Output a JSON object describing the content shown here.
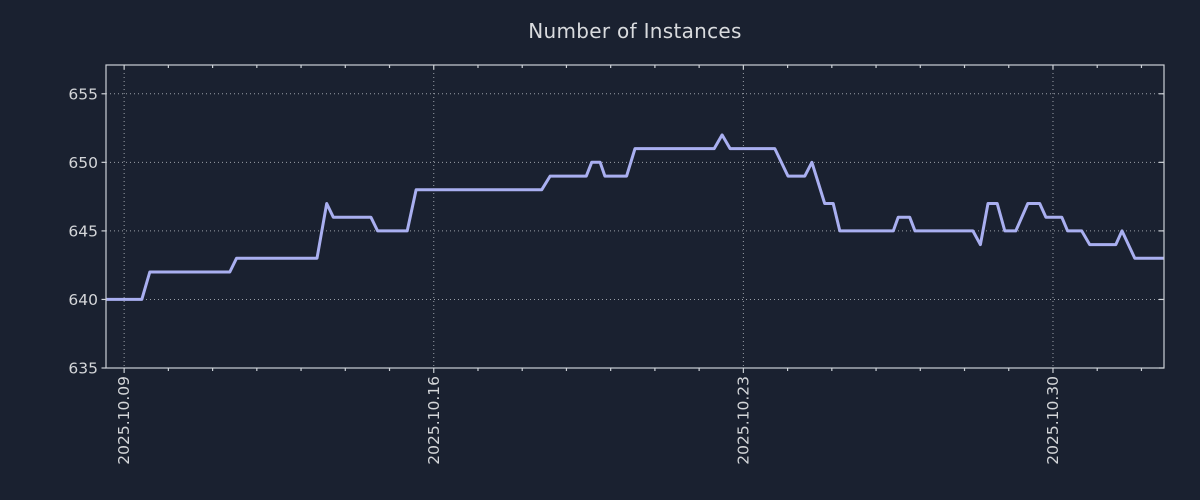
{
  "chart_data": {
    "type": "line",
    "title": "Number of Instances",
    "xlabel": "",
    "ylabel": "",
    "legend": "none",
    "grid": "dotted, both axes, at major ticks",
    "x_unit": "days relative to 2025.10.09",
    "xlim": [
      -0.41,
      23.51
    ],
    "ylim": [
      635,
      657.1
    ],
    "y_ticks": [
      635,
      640,
      645,
      650,
      655
    ],
    "x_ticks": [
      {
        "day": 0,
        "label": "2025.10.09"
      },
      {
        "day": 7,
        "label": "2025.10.16"
      },
      {
        "day": 14,
        "label": "2025.10.23"
      },
      {
        "day": 21,
        "label": "2025.10.30"
      }
    ],
    "x_minor_tick_every_days": 1,
    "series": [
      {
        "name": "Number of Instances",
        "color": "#a9aff0",
        "points": [
          [
            -0.41,
            640
          ],
          [
            0.4,
            640
          ],
          [
            0.58,
            642
          ],
          [
            2.39,
            642
          ],
          [
            2.54,
            643
          ],
          [
            4.36,
            643
          ],
          [
            4.58,
            647
          ],
          [
            4.73,
            646
          ],
          [
            5.58,
            646
          ],
          [
            5.73,
            645
          ],
          [
            6.4,
            645
          ],
          [
            6.6,
            648
          ],
          [
            9.44,
            648
          ],
          [
            9.63,
            649
          ],
          [
            10.45,
            649
          ],
          [
            10.57,
            650
          ],
          [
            10.76,
            650
          ],
          [
            10.87,
            649
          ],
          [
            11.36,
            649
          ],
          [
            11.55,
            651
          ],
          [
            13.34,
            651
          ],
          [
            13.52,
            652
          ],
          [
            13.7,
            651
          ],
          [
            14.71,
            651
          ],
          [
            15.01,
            649
          ],
          [
            15.39,
            649
          ],
          [
            15.55,
            650
          ],
          [
            15.84,
            647
          ],
          [
            16.03,
            647
          ],
          [
            16.18,
            645
          ],
          [
            17.39,
            645
          ],
          [
            17.5,
            646
          ],
          [
            17.76,
            646
          ],
          [
            17.88,
            645
          ],
          [
            19.19,
            645
          ],
          [
            19.36,
            644
          ],
          [
            19.53,
            647
          ],
          [
            19.74,
            647
          ],
          [
            19.91,
            645
          ],
          [
            20.16,
            645
          ],
          [
            20.43,
            647
          ],
          [
            20.7,
            647
          ],
          [
            20.84,
            646
          ],
          [
            21.2,
            646
          ],
          [
            21.33,
            645
          ],
          [
            21.65,
            645
          ],
          [
            21.83,
            644
          ],
          [
            22.42,
            644
          ],
          [
            22.56,
            645
          ],
          [
            22.85,
            643
          ],
          [
            23.51,
            643
          ]
        ]
      }
    ],
    "colors": {
      "background": "#1a2130",
      "line": "#a9aff0",
      "axis_frame": "#ccd0d6",
      "grid": "#b2b7bd",
      "tick_label": "#d4d6d9",
      "title": "#d9dbde"
    }
  }
}
